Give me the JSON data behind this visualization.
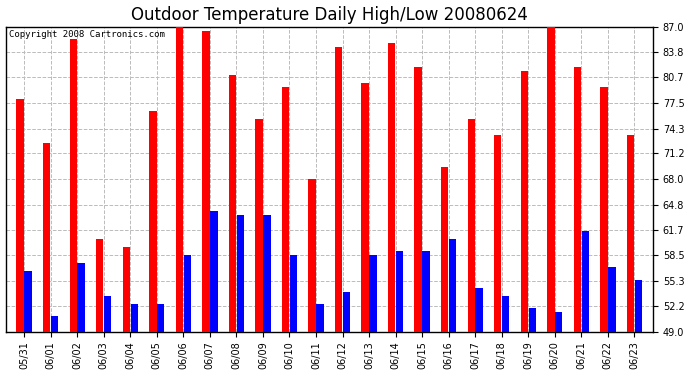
{
  "title": "Outdoor Temperature Daily High/Low 20080624",
  "copyright": "Copyright 2008 Cartronics.com",
  "dates": [
    "05/31",
    "06/01",
    "06/02",
    "06/03",
    "06/04",
    "06/05",
    "06/06",
    "06/07",
    "06/08",
    "06/09",
    "06/10",
    "06/11",
    "06/12",
    "06/13",
    "06/14",
    "06/15",
    "06/16",
    "06/17",
    "06/18",
    "06/19",
    "06/20",
    "06/21",
    "06/22",
    "06/23"
  ],
  "highs": [
    78.0,
    72.5,
    85.5,
    60.5,
    59.5,
    76.5,
    87.5,
    86.5,
    81.0,
    75.5,
    79.5,
    68.0,
    84.5,
    80.0,
    85.0,
    82.0,
    69.5,
    75.5,
    73.5,
    81.5,
    87.0,
    82.0,
    79.5,
    73.5
  ],
  "lows": [
    56.5,
    51.0,
    57.5,
    53.5,
    52.5,
    52.5,
    58.5,
    64.0,
    63.5,
    63.5,
    58.5,
    52.5,
    54.0,
    58.5,
    59.0,
    59.0,
    60.5,
    54.5,
    53.5,
    52.0,
    51.5,
    61.5,
    57.0,
    55.5
  ],
  "high_color": "#ff0000",
  "low_color": "#0000ff",
  "bg_color": "#ffffff",
  "plot_bg_color": "#ffffff",
  "grid_color": "#bbbbbb",
  "ymin": 49.0,
  "ymax": 87.0,
  "yticks": [
    49.0,
    52.2,
    55.3,
    58.5,
    61.7,
    64.8,
    68.0,
    71.2,
    74.3,
    77.5,
    80.7,
    83.8,
    87.0
  ],
  "title_fontsize": 12,
  "tick_fontsize": 7,
  "copyright_fontsize": 6.5,
  "bar_width": 0.28,
  "bar_gap": 0.02
}
